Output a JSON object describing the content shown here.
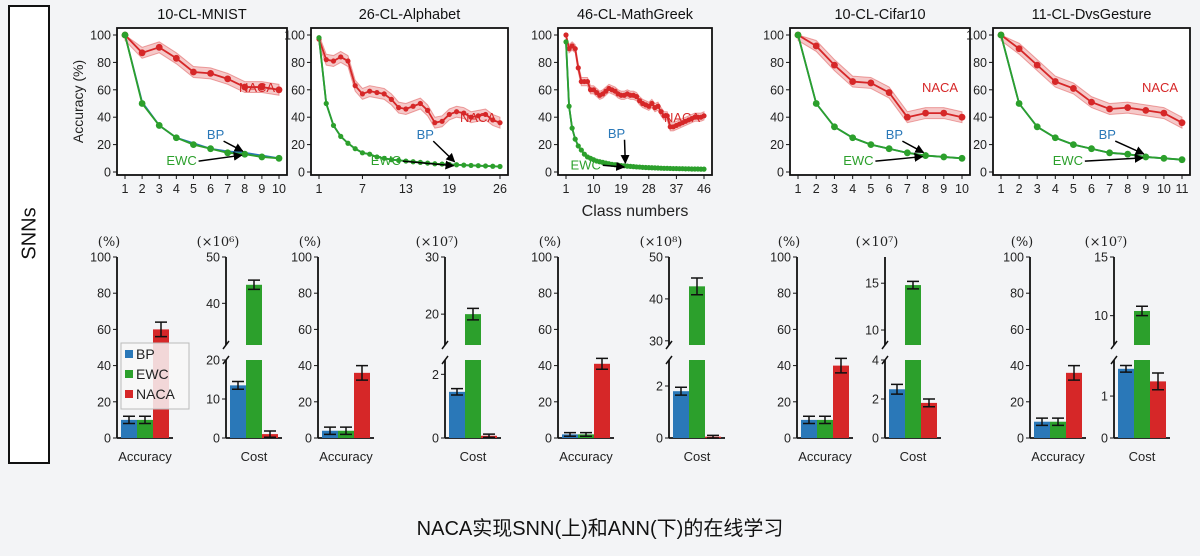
{
  "side_label": "SNNs",
  "caption": "NACA实现SNN(上)和ANN(下)的在线学习",
  "colors": {
    "BP": "#2a78b8",
    "EWC": "#2ca02c",
    "NACA": "#d62728"
  },
  "chart_data": [
    {
      "type": "line",
      "title": "10-CL-MNIST",
      "ylabel": "Accuracy (%)",
      "ylim": [
        0,
        100
      ],
      "yticks": [
        0,
        20,
        40,
        60,
        80,
        100
      ],
      "x": [
        1,
        2,
        3,
        4,
        5,
        6,
        7,
        8,
        9,
        10
      ],
      "xticks": [
        1,
        2,
        3,
        4,
        5,
        6,
        7,
        8,
        9,
        10
      ],
      "series": [
        {
          "name": "NACA",
          "values": [
            100,
            87,
            91,
            83,
            73,
            72,
            68,
            62,
            62,
            60
          ],
          "band": 4
        },
        {
          "name": "BP",
          "values": [
            100,
            51,
            34,
            25,
            21,
            17,
            15,
            14,
            12,
            10
          ]
        },
        {
          "name": "EWC",
          "values": [
            100,
            50,
            34,
            25,
            20,
            17,
            14,
            13,
            11,
            10
          ]
        }
      ]
    },
    {
      "type": "line",
      "title": "26-CL-Alphabet",
      "ylim": [
        0,
        100
      ],
      "yticks": [
        0,
        20,
        40,
        60,
        80,
        100
      ],
      "x": [
        1,
        2,
        3,
        4,
        5,
        6,
        7,
        8,
        9,
        10,
        11,
        12,
        13,
        14,
        15,
        16,
        17,
        18,
        19,
        20,
        21,
        22,
        23,
        24,
        25,
        26
      ],
      "xticks": [
        1,
        7,
        13,
        19,
        26
      ],
      "series": [
        {
          "name": "NACA",
          "values": [
            97,
            82,
            81,
            84,
            81,
            63,
            57,
            59,
            58,
            57,
            53,
            47,
            46,
            48,
            50,
            45,
            36,
            37,
            42,
            44,
            43,
            40,
            41,
            42,
            38,
            36
          ],
          "band": 4
        },
        {
          "name": "BP",
          "values": [
            98,
            50,
            34,
            26,
            21,
            17,
            14,
            13,
            11,
            10,
            9,
            8.5,
            8,
            7.5,
            7,
            6.5,
            6,
            5.8,
            5.5,
            5.3,
            5,
            4.8,
            4.6,
            4.4,
            4.2,
            4
          ]
        },
        {
          "name": "EWC",
          "values": [
            98,
            50,
            34,
            26,
            21,
            17,
            14,
            13,
            11,
            10,
            9,
            8.5,
            8,
            7.5,
            7,
            6.5,
            6,
            5.8,
            5.5,
            5.3,
            5,
            4.8,
            4.6,
            4.4,
            4.2,
            4
          ]
        }
      ]
    },
    {
      "type": "line",
      "title": "46-CL-MathGreek",
      "xlabel": "Class numbers",
      "ylim": [
        0,
        100
      ],
      "yticks": [
        0,
        20,
        40,
        60,
        80,
        100
      ],
      "x": [
        1,
        2,
        3,
        4,
        5,
        6,
        7,
        8,
        9,
        10,
        11,
        12,
        13,
        14,
        15,
        16,
        17,
        18,
        19,
        20,
        21,
        22,
        23,
        24,
        25,
        26,
        27,
        28,
        29,
        30,
        31,
        32,
        33,
        34,
        35,
        36,
        37,
        38,
        39,
        40,
        41,
        42,
        43,
        44,
        45,
        46
      ],
      "xticks": [
        1,
        10,
        19,
        28,
        37,
        46
      ],
      "series": [
        {
          "name": "NACA",
          "values": [
            100,
            90,
            92,
            90,
            76,
            66,
            66,
            66,
            60,
            60,
            58,
            56,
            57,
            59,
            61,
            60,
            59,
            57,
            56,
            56,
            57,
            56,
            56,
            55,
            52,
            50,
            49,
            48,
            50,
            47,
            48,
            44,
            41,
            41,
            33,
            33,
            34,
            35,
            36,
            37,
            38,
            39,
            40,
            40,
            40,
            41
          ],
          "band": 3
        },
        {
          "name": "BP",
          "values": [
            95,
            48,
            32,
            24,
            19,
            16,
            13,
            11,
            10,
            9,
            8,
            7.5,
            7,
            6.5,
            6,
            5.6,
            5.3,
            5,
            4.7,
            4.5,
            4.3,
            4.1,
            3.9,
            3.7,
            3.6,
            3.4,
            3.3,
            3.2,
            3.1,
            3,
            2.9,
            2.8,
            2.7,
            2.7,
            2.6,
            2.5,
            2.5,
            2.4,
            2.4,
            2.3,
            2.3,
            2.2,
            2.2,
            2.2,
            2.1,
            2.1
          ]
        },
        {
          "name": "EWC",
          "values": [
            95,
            48,
            32,
            24,
            19,
            16,
            13,
            11,
            10,
            9,
            8,
            7.5,
            7,
            6.5,
            6,
            5.6,
            5.3,
            5,
            4.7,
            4.5,
            4.3,
            4.1,
            3.9,
            3.7,
            3.6,
            3.4,
            3.3,
            3.2,
            3.1,
            3,
            2.9,
            2.8,
            2.7,
            2.7,
            2.6,
            2.5,
            2.5,
            2.4,
            2.4,
            2.3,
            2.3,
            2.2,
            2.2,
            2.2,
            2.1,
            2.1
          ]
        }
      ]
    },
    {
      "type": "line",
      "title": "10-CL-Cifar10",
      "ylim": [
        0,
        100
      ],
      "yticks": [
        0,
        20,
        40,
        60,
        80,
        100
      ],
      "x": [
        1,
        2,
        3,
        4,
        5,
        6,
        7,
        8,
        9,
        10
      ],
      "xticks": [
        1,
        2,
        3,
        4,
        5,
        6,
        7,
        8,
        9,
        10
      ],
      "series": [
        {
          "name": "NACA",
          "values": [
            100,
            92,
            78,
            66,
            65,
            58,
            40,
            43,
            43,
            40
          ],
          "band": 4
        },
        {
          "name": "BP",
          "values": [
            100,
            50,
            33,
            25,
            20,
            17,
            14,
            12,
            11,
            10
          ]
        },
        {
          "name": "EWC",
          "values": [
            100,
            50,
            33,
            25,
            20,
            17,
            14,
            12,
            11,
            10
          ]
        }
      ]
    },
    {
      "type": "line",
      "title": "11-CL-DvsGesture",
      "ylim": [
        0,
        100
      ],
      "yticks": [
        0,
        20,
        40,
        60,
        80,
        100
      ],
      "x": [
        1,
        2,
        3,
        4,
        5,
        6,
        7,
        8,
        9,
        10,
        11
      ],
      "xticks": [
        1,
        2,
        3,
        4,
        5,
        6,
        7,
        8,
        9,
        10,
        11
      ],
      "series": [
        {
          "name": "NACA",
          "values": [
            100,
            90,
            78,
            66,
            61,
            51,
            46,
            47,
            45,
            43,
            36
          ],
          "band": 4
        },
        {
          "name": "BP",
          "values": [
            100,
            50,
            33,
            25,
            20,
            17,
            14,
            13,
            11,
            10,
            9
          ]
        },
        {
          "name": "EWC",
          "values": [
            100,
            50,
            33,
            25,
            20,
            17,
            14,
            13,
            11,
            10,
            9
          ]
        }
      ]
    },
    {
      "type": "bar",
      "panel": "MNIST",
      "unit": "(%)",
      "xlabel": "Accuracy",
      "categories": [
        "BP",
        "EWC",
        "NACA"
      ],
      "values": [
        10,
        10,
        60
      ],
      "errors": [
        2,
        2,
        4
      ],
      "ylim": [
        0,
        100
      ],
      "yticks": [
        0,
        20,
        40,
        60,
        80,
        100
      ]
    },
    {
      "type": "bar",
      "panel": "MNIST",
      "unit": "(×10⁶)",
      "xlabel": "Cost",
      "categories": [
        "BP",
        "EWC",
        "NACA"
      ],
      "values": [
        13.5,
        44,
        1
      ],
      "errors": [
        1,
        1,
        0.8
      ],
      "broken": {
        "lower": [
          0,
          20
        ],
        "lower_ticks": [
          0,
          10,
          20
        ],
        "upper": [
          31,
          50
        ],
        "upper_ticks": [
          40,
          50
        ]
      }
    },
    {
      "type": "bar",
      "panel": "Alphabet",
      "unit": "(%)",
      "xlabel": "Accuracy",
      "categories": [
        "BP",
        "EWC",
        "NACA"
      ],
      "values": [
        4,
        4,
        36
      ],
      "errors": [
        2,
        2,
        4
      ],
      "ylim": [
        0,
        100
      ],
      "yticks": [
        0,
        20,
        40,
        60,
        80,
        100
      ]
    },
    {
      "type": "bar",
      "panel": "Alphabet",
      "unit": "(×10⁷)",
      "xlabel": "Cost",
      "categories": [
        "BP",
        "EWC",
        "NACA"
      ],
      "values": [
        1.45,
        20,
        0.07
      ],
      "errors": [
        0.1,
        1,
        0.05
      ],
      "broken": {
        "lower": [
          0,
          2.45
        ],
        "lower_ticks": [
          0,
          2
        ],
        "upper": [
          14.6,
          30
        ],
        "upper_ticks": [
          20,
          30
        ]
      }
    },
    {
      "type": "bar",
      "panel": "MathGreek",
      "unit": "(%)",
      "xlabel": "Accuracy",
      "categories": [
        "BP",
        "EWC",
        "NACA"
      ],
      "values": [
        2,
        2,
        41
      ],
      "errors": [
        1,
        1,
        3
      ],
      "ylim": [
        0,
        100
      ],
      "yticks": [
        0,
        20,
        40,
        60,
        80,
        100
      ]
    },
    {
      "type": "bar",
      "panel": "MathGreek",
      "unit": "(×10⁸)",
      "xlabel": "Cost",
      "categories": [
        "BP",
        "EWC",
        "NACA"
      ],
      "values": [
        1.8,
        43,
        0.05
      ],
      "errors": [
        0.15,
        2,
        0.05
      ],
      "broken": {
        "lower": [
          0,
          3
        ],
        "lower_ticks": [
          0,
          2
        ],
        "upper": [
          29,
          50
        ],
        "upper_ticks": [
          30,
          40,
          50
        ]
      }
    },
    {
      "type": "bar",
      "panel": "Cifar10",
      "unit": "(%)",
      "xlabel": "Accuracy",
      "categories": [
        "BP",
        "EWC",
        "NACA"
      ],
      "values": [
        10,
        10,
        40
      ],
      "errors": [
        2,
        2,
        4
      ],
      "ylim": [
        0,
        100
      ],
      "yticks": [
        0,
        20,
        40,
        60,
        80,
        100
      ]
    },
    {
      "type": "bar",
      "panel": "Cifar10",
      "unit": "(×10⁷)",
      "xlabel": "Cost",
      "categories": [
        "BP",
        "EWC",
        "NACA"
      ],
      "values": [
        2.5,
        14.8,
        1.8
      ],
      "errors": [
        0.25,
        0.4,
        0.2
      ],
      "broken": {
        "lower": [
          0,
          4
        ],
        "lower_ticks": [
          0,
          2,
          4
        ],
        "upper": [
          8.4,
          17.8
        ],
        "upper_ticks": [
          10,
          15
        ]
      }
    },
    {
      "type": "bar",
      "panel": "DvsGesture",
      "unit": "(%)",
      "xlabel": "Accuracy",
      "categories": [
        "BP",
        "EWC",
        "NACA"
      ],
      "values": [
        9,
        9,
        36
      ],
      "errors": [
        2,
        2,
        4
      ],
      "ylim": [
        0,
        100
      ],
      "yticks": [
        0,
        20,
        40,
        60,
        80,
        100
      ]
    },
    {
      "type": "bar",
      "panel": "DvsGesture",
      "unit": "(×10⁷)",
      "xlabel": "Cost",
      "categories": [
        "BP",
        "EWC",
        "NACA"
      ],
      "values": [
        1.65,
        10.4,
        1.35
      ],
      "errors": [
        0.08,
        0.4,
        0.2
      ],
      "broken": {
        "lower": [
          0,
          1.86
        ],
        "lower_ticks": [
          0,
          1
        ],
        "upper": [
          7.5,
          15
        ],
        "upper_ticks": [
          10,
          15
        ]
      }
    }
  ],
  "legend": [
    "BP",
    "EWC",
    "NACA"
  ]
}
